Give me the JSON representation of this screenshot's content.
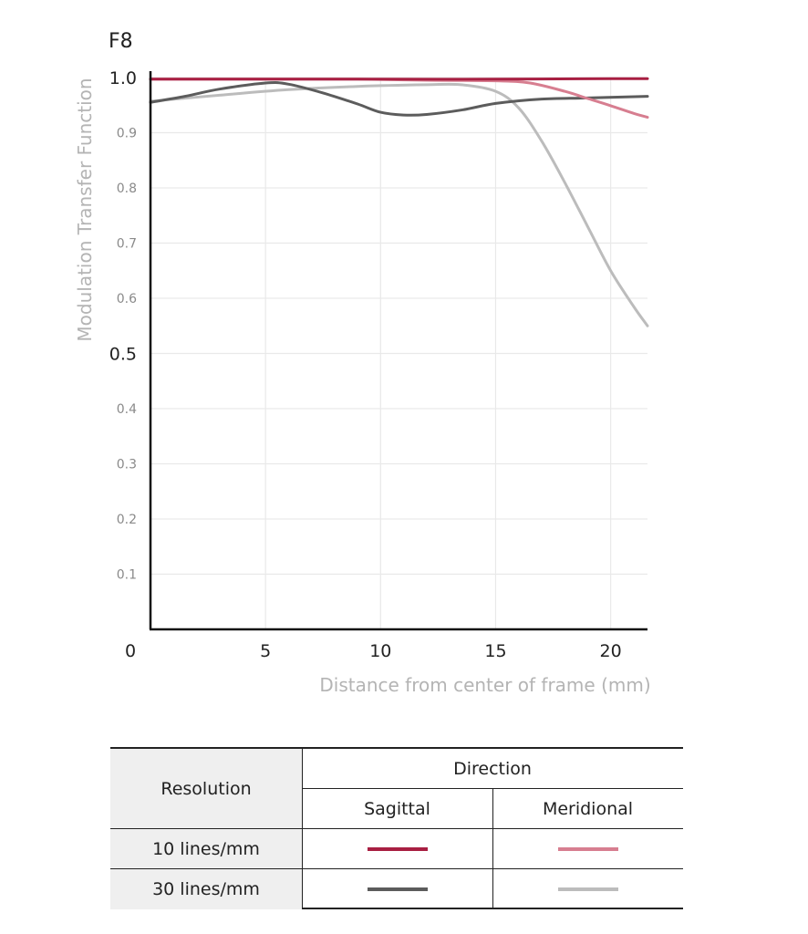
{
  "chart_data": {
    "type": "line",
    "title": "F8",
    "xlabel": "Distance from center of frame (mm)",
    "ylabel": "Modulation Transfer Function",
    "xlim": [
      0,
      21.6
    ],
    "ylim": [
      0,
      1.0
    ],
    "x_ticks": [
      "0",
      "5",
      "10",
      "15",
      "20"
    ],
    "x_tick_values": [
      0,
      5,
      10,
      15,
      20
    ],
    "y_ticks_major": [
      {
        "label": "1.0",
        "value": 1.0
      },
      {
        "label": "0.5",
        "value": 0.5
      }
    ],
    "y_ticks_minor": [
      {
        "label": "0.9",
        "value": 0.9
      },
      {
        "label": "0.8",
        "value": 0.8
      },
      {
        "label": "0.7",
        "value": 0.7
      },
      {
        "label": "0.6",
        "value": 0.6
      },
      {
        "label": "0.4",
        "value": 0.4
      },
      {
        "label": "0.3",
        "value": 0.3
      },
      {
        "label": "0.2",
        "value": 0.2
      },
      {
        "label": "0.1",
        "value": 0.1
      }
    ],
    "grid": true,
    "series": [
      {
        "resolution": "10 lines/mm",
        "direction": "Sagittal",
        "color": "#a81f42",
        "x": [
          0,
          5,
          10,
          15,
          20,
          21.6
        ],
        "y": [
          0.997,
          0.997,
          0.997,
          0.997,
          0.998,
          0.998
        ]
      },
      {
        "resolution": "10 lines/mm",
        "direction": "Meridional",
        "color": "#d77e90",
        "x": [
          0,
          3,
          6,
          9,
          12,
          15,
          16.5,
          18,
          19,
          20,
          21,
          21.6
        ],
        "y": [
          0.997,
          0.997,
          0.997,
          0.997,
          0.995,
          0.994,
          0.99,
          0.975,
          0.962,
          0.949,
          0.935,
          0.928
        ]
      },
      {
        "resolution": "30 lines/mm",
        "direction": "Sagittal",
        "color": "#5c5c5c",
        "x": [
          0,
          1.5,
          3,
          5,
          6,
          7.5,
          9,
          10,
          11,
          12,
          13.5,
          15,
          17,
          19,
          21.6
        ],
        "y": [
          0.955,
          0.966,
          0.979,
          0.99,
          0.988,
          0.972,
          0.952,
          0.937,
          0.932,
          0.933,
          0.941,
          0.953,
          0.961,
          0.963,
          0.966
        ]
      },
      {
        "resolution": "30 lines/mm",
        "direction": "Meridional",
        "color": "#bcbcbc",
        "x": [
          0,
          3,
          6,
          9,
          12,
          13.5,
          15,
          16,
          17,
          18,
          19,
          20,
          21,
          21.6
        ],
        "y": [
          0.957,
          0.968,
          0.978,
          0.984,
          0.987,
          0.987,
          0.975,
          0.945,
          0.885,
          0.81,
          0.73,
          0.65,
          0.585,
          0.55
        ]
      }
    ]
  },
  "legend_table": {
    "header_resolution": "Resolution",
    "header_direction": "Direction",
    "header_sagittal": "Sagittal",
    "header_meridional": "Meridional",
    "rows": [
      {
        "label": "10 lines/mm",
        "sagittal_color": "#a81f42",
        "meridional_color": "#d77e90"
      },
      {
        "label": "30 lines/mm",
        "sagittal_color": "#5c5c5c",
        "meridional_color": "#bcbcbc"
      }
    ]
  }
}
